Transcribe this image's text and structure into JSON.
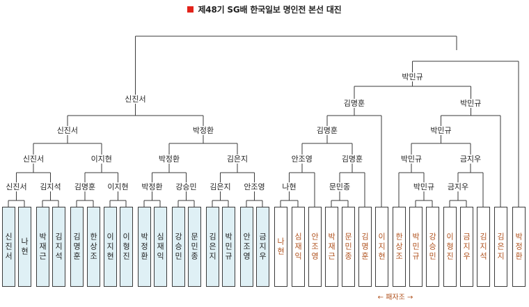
{
  "title": "제48기 SG배 한국일보 명인전 본선 대진",
  "footer_label": "← 패자조 →",
  "colors": {
    "title_marker": "#e2231a",
    "seed_fill": "#dff0f5",
    "loser_text": "#b0521e",
    "line": "#3a3a3a"
  },
  "players": [
    "신진서",
    "나현",
    "박재근",
    "김지석",
    "김명훈",
    "한상조",
    "이지현",
    "이형진",
    "박정환",
    "심재익",
    "강승민",
    "문민종",
    "김은지",
    "박민규",
    "안조영",
    "금지우",
    "나현",
    "심재익",
    "안조영",
    "박재근",
    "문민종",
    "김명훈",
    "이지현",
    "한상조",
    "박민규",
    "강승민",
    "이형진",
    "금지우",
    "김지석",
    "김은지",
    "박정환"
  ],
  "winner_labels": {
    "w_r1": [
      "신진서",
      "김지석",
      "김명훈",
      "이지현",
      "박정환",
      "강승민",
      "김은지",
      "안조영"
    ],
    "w_r2": [
      "신진서",
      "이지현",
      "박정환",
      "김은지"
    ],
    "w_r3": [
      "신진서",
      "박정환"
    ],
    "w_final": "신진서",
    "l_r1": [
      "나현",
      "문민종",
      "박민규",
      "금지우"
    ],
    "l_r2": [
      "안조영",
      "김명훈",
      "박민규",
      "금지우"
    ],
    "l_r3": [
      "김명훈",
      "박민규"
    ],
    "l_r4": [
      "김명훈",
      "박민규"
    ],
    "l_r5": "박민규"
  }
}
